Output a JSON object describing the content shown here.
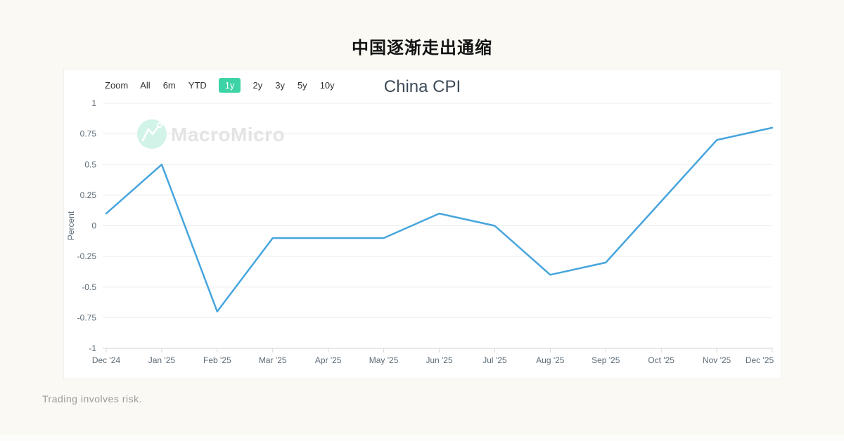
{
  "page": {
    "title": "中国逐渐走出通缩",
    "disclaimer": "Trading involves risk.",
    "background_color": "#FAF9F4"
  },
  "toolbar": {
    "zoom_label": "Zoom",
    "ranges": [
      {
        "label": "All",
        "selected": false
      },
      {
        "label": "6m",
        "selected": false
      },
      {
        "label": "YTD",
        "selected": false
      },
      {
        "label": "1y",
        "selected": true
      },
      {
        "label": "2y",
        "selected": false
      },
      {
        "label": "3y",
        "selected": false
      },
      {
        "label": "5y",
        "selected": false
      },
      {
        "label": "10y",
        "selected": false
      }
    ],
    "selected_color": "#3ED3A6"
  },
  "watermark": {
    "text": "MacroMicro",
    "logo_circle_color": "#D2F4E8",
    "text_color": "#E4E4E4"
  },
  "chart_data": {
    "type": "line",
    "title": "China CPI",
    "ylabel": "Percent",
    "categories": [
      "Dec '24",
      "Jan '25",
      "Feb '25",
      "Mar '25",
      "Apr '25",
      "May '25",
      "Jun '25",
      "Jul '25",
      "Aug '25",
      "Sep '25",
      "Oct '25",
      "Nov '25",
      "Dec '25"
    ],
    "values": [
      0.1,
      0.5,
      -0.7,
      -0.1,
      -0.1,
      -0.1,
      0.1,
      0.0,
      -0.4,
      -0.3,
      0.2,
      0.7,
      0.8
    ],
    "ylim": [
      -1,
      1
    ],
    "ytick_step": 0.25,
    "yticks": [
      "1",
      "0.75",
      "0.5",
      "0.25",
      "0",
      "-0.25",
      "-0.5",
      "-0.75",
      "-1"
    ],
    "grid": true,
    "legend": false,
    "line_color": "#47A5DD",
    "grid_color": "#EDEDED",
    "axis_color": "#D6D6D6",
    "tick_label_color": "#5D6B77"
  }
}
